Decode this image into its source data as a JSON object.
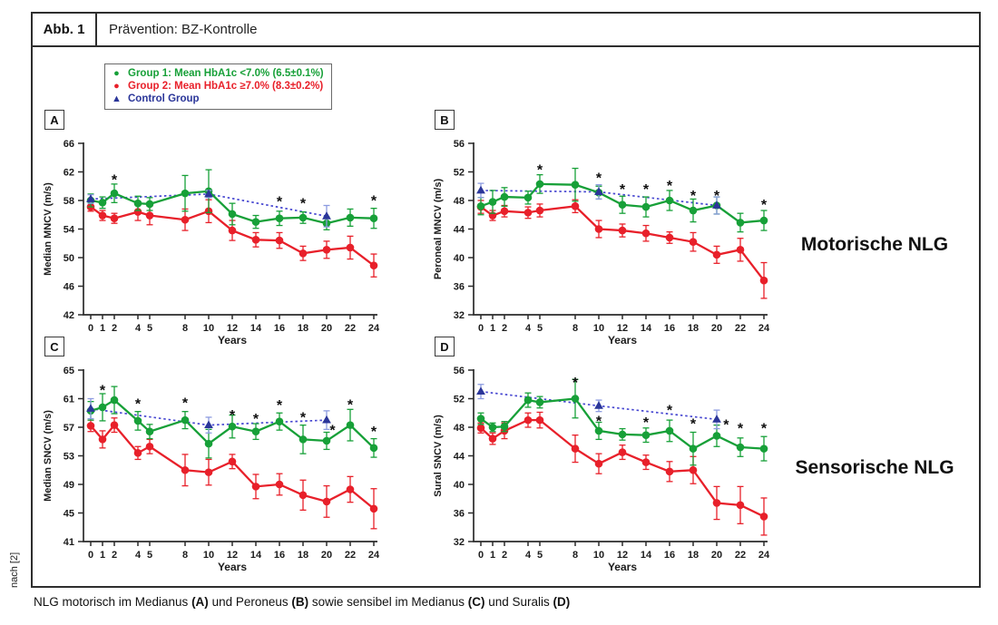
{
  "figure": {
    "label": "Abb. 1",
    "title": "Prävention: BZ-Kontrolle",
    "source_note": "nach [2]",
    "group_labels": {
      "motor": "Motorische NLG",
      "sensory": "Sensorische NLG"
    },
    "caption_segments": [
      {
        "text": "NLG motorisch im Medianus ",
        "bold": false
      },
      {
        "text": "(A)",
        "bold": true
      },
      {
        "text": " und Peroneus ",
        "bold": false
      },
      {
        "text": "(B)",
        "bold": true
      },
      {
        "text": " sowie sensibel im Medianus ",
        "bold": false
      },
      {
        "text": "(C)",
        "bold": true
      },
      {
        "text": " und Suralis ",
        "bold": false
      },
      {
        "text": "(D)",
        "bold": true
      }
    ]
  },
  "legend": {
    "items": [
      {
        "label": "Group 1: Mean HbA1c <7.0% (6.5±0.1%)",
        "color": "#17A038",
        "marker": "circle"
      },
      {
        "label": "Group 2: Mean HbA1c ≥7.0% (8.3±0.2%)",
        "color": "#E8202A",
        "marker": "circle"
      },
      {
        "label": "Control Group",
        "color": "#2B3699",
        "marker": "triangle"
      }
    ]
  },
  "colors": {
    "group1": "#17A038",
    "group2": "#E8202A",
    "control_marker": "#2B3699",
    "control_line": "#4747D1",
    "control_error": "#8C9BE0",
    "axis": "#2b2b2b"
  },
  "chart_data": [
    {
      "panel": "A",
      "type": "line",
      "xlabel": "Years",
      "ylabel": "Median MNCV (m/s)",
      "ylim": [
        42,
        66
      ],
      "ytick_step": 4,
      "x": [
        0,
        1,
        2,
        4,
        5,
        8,
        10,
        12,
        14,
        16,
        18,
        20,
        22,
        24
      ],
      "xticks": [
        0,
        1,
        2,
        4,
        5,
        8,
        10,
        12,
        14,
        16,
        18,
        20,
        22,
        24
      ],
      "series": [
        {
          "name": "Group 1",
          "color": "#17A038",
          "marker": "circle",
          "values": [
            58.0,
            57.7,
            59.0,
            57.6,
            57.5,
            59.0,
            59.3,
            56.1,
            55.0,
            55.5,
            55.6,
            54.8,
            55.6,
            55.5
          ],
          "errors": [
            0.9,
            0.8,
            1.3,
            1.0,
            0.9,
            2.5,
            3.0,
            1.5,
            0.9,
            1.0,
            0.8,
            0.9,
            1.2,
            1.4
          ]
        },
        {
          "name": "Group 2",
          "color": "#E8202A",
          "marker": "circle",
          "values": [
            57.1,
            55.9,
            55.5,
            56.4,
            55.9,
            55.3,
            56.5,
            53.8,
            52.5,
            52.4,
            50.6,
            51.1,
            51.4,
            48.9
          ],
          "errors": [
            0.6,
            0.7,
            0.7,
            1.2,
            1.3,
            1.5,
            1.6,
            1.4,
            1.0,
            1.1,
            1.0,
            1.2,
            1.6,
            1.6
          ]
        },
        {
          "name": "Control Group",
          "color": "#2B3699",
          "marker": "triangle",
          "line": "dotted",
          "line_color": "#4747D1",
          "x": [
            0,
            10,
            20
          ],
          "values": [
            58.2,
            58.9,
            55.8
          ],
          "errors": [
            0.6,
            0.5,
            1.5
          ]
        }
      ],
      "asterisks": [
        {
          "x": 2,
          "y": 60.9
        },
        {
          "x": 16,
          "y": 57.9
        },
        {
          "x": 18,
          "y": 57.6
        },
        {
          "x": 24,
          "y": 58.0
        }
      ]
    },
    {
      "panel": "B",
      "type": "line",
      "xlabel": "Years",
      "ylabel": "Peroneal MNCV (m/s)",
      "ylim": [
        32,
        56
      ],
      "ytick_step": 4,
      "x": [
        0,
        1,
        2,
        4,
        5,
        8,
        10,
        12,
        14,
        16,
        18,
        20,
        22,
        24
      ],
      "xticks": [
        0,
        1,
        2,
        4,
        5,
        8,
        10,
        12,
        14,
        16,
        18,
        20,
        22,
        24
      ],
      "series": [
        {
          "name": "Group 1",
          "color": "#17A038",
          "marker": "circle",
          "values": [
            47.2,
            47.8,
            48.5,
            48.4,
            50.3,
            50.2,
            49.1,
            47.4,
            47.1,
            48.0,
            46.6,
            47.3,
            44.9,
            45.2
          ],
          "errors": [
            1.2,
            1.6,
            1.3,
            0.9,
            1.3,
            2.3,
            0.9,
            1.2,
            1.4,
            1.4,
            1.6,
            1.2,
            1.3,
            1.4
          ]
        },
        {
          "name": "Group 2",
          "color": "#E8202A",
          "marker": "circle",
          "values": [
            47.1,
            45.9,
            46.5,
            46.3,
            46.6,
            47.2,
            44.0,
            43.8,
            43.4,
            42.8,
            42.2,
            40.4,
            41.1,
            36.8
          ],
          "errors": [
            0.9,
            0.7,
            0.8,
            0.8,
            0.9,
            0.9,
            1.2,
            0.9,
            1.1,
            0.8,
            1.3,
            1.2,
            1.6,
            2.5
          ]
        },
        {
          "name": "Control Group",
          "color": "#2B3699",
          "marker": "triangle",
          "line": "dotted",
          "line_color": "#4747D1",
          "x": [
            0,
            10,
            20
          ],
          "values": [
            49.4,
            49.2,
            47.3
          ],
          "errors": [
            1.0,
            1.0,
            1.2
          ]
        }
      ],
      "asterisks": [
        {
          "x": 5,
          "y": 52.3
        },
        {
          "x": 10,
          "y": 51.2
        },
        {
          "x": 12,
          "y": 49.6
        },
        {
          "x": 14,
          "y": 49.6
        },
        {
          "x": 16,
          "y": 50.1
        },
        {
          "x": 18,
          "y": 48.7
        },
        {
          "x": 20,
          "y": 48.7
        },
        {
          "x": 24,
          "y": 47.4
        }
      ]
    },
    {
      "panel": "C",
      "type": "line",
      "xlabel": "Years",
      "ylabel": "Median SNCV (m/s)",
      "ylim": [
        41,
        65
      ],
      "ytick_step": 4,
      "x": [
        0,
        1,
        2,
        4,
        5,
        8,
        10,
        12,
        14,
        16,
        18,
        20,
        22,
        24
      ],
      "xticks": [
        0,
        1,
        2,
        4,
        5,
        8,
        10,
        12,
        14,
        16,
        18,
        20,
        22,
        24
      ],
      "series": [
        {
          "name": "Group 1",
          "color": "#17A038",
          "marker": "circle",
          "values": [
            59.3,
            59.8,
            60.8,
            57.9,
            56.4,
            58.0,
            54.7,
            57.1,
            56.4,
            57.8,
            55.3,
            55.1,
            57.3,
            54.1
          ],
          "errors": [
            1.3,
            1.9,
            1.9,
            1.3,
            1.0,
            1.2,
            2.0,
            1.6,
            1.1,
            1.2,
            2.0,
            1.2,
            2.2,
            1.3
          ]
        },
        {
          "name": "Group 2",
          "color": "#E8202A",
          "marker": "circle",
          "values": [
            57.2,
            55.3,
            57.3,
            53.4,
            54.3,
            51.0,
            50.7,
            52.2,
            48.7,
            49.0,
            47.5,
            46.6,
            48.3,
            45.6
          ],
          "errors": [
            0.8,
            1.2,
            1.0,
            0.9,
            1.0,
            2.2,
            1.8,
            1.0,
            1.7,
            1.5,
            2.1,
            2.2,
            1.8,
            2.8
          ]
        },
        {
          "name": "Control Group",
          "color": "#2B3699",
          "marker": "triangle",
          "line": "dotted",
          "line_color": "#4747D1",
          "x": [
            0,
            10,
            20
          ],
          "values": [
            59.6,
            57.3,
            58.0
          ],
          "errors": [
            1.4,
            1.1,
            1.3
          ]
        }
      ],
      "asterisks": [
        {
          "x": 1,
          "y": 62.2
        },
        {
          "x": 4,
          "y": 60.3
        },
        {
          "x": 8,
          "y": 60.4
        },
        {
          "x": 12,
          "y": 58.7
        },
        {
          "x": 14,
          "y": 58.2
        },
        {
          "x": 16,
          "y": 60.1
        },
        {
          "x": 18,
          "y": 58.4
        },
        {
          "x": 20.5,
          "y": 56.6
        },
        {
          "x": 22,
          "y": 60.2
        },
        {
          "x": 24,
          "y": 56.4
        }
      ]
    },
    {
      "panel": "D",
      "type": "line",
      "xlabel": "Years",
      "ylabel": "Sural SNCV (m/s)",
      "ylim": [
        32,
        56
      ],
      "ytick_step": 4,
      "x": [
        0,
        1,
        2,
        4,
        5,
        8,
        10,
        12,
        14,
        16,
        18,
        20,
        22,
        24
      ],
      "xticks": [
        0,
        1,
        2,
        4,
        5,
        8,
        10,
        12,
        14,
        16,
        18,
        20,
        22,
        24
      ],
      "series": [
        {
          "name": "Group 1",
          "color": "#17A038",
          "marker": "circle",
          "values": [
            49.2,
            48.0,
            48.1,
            51.8,
            51.5,
            52.0,
            47.5,
            47.0,
            46.9,
            47.5,
            45.0,
            46.8,
            45.2,
            45.0
          ],
          "errors": [
            0.8,
            0.6,
            0.7,
            1.0,
            0.8,
            2.7,
            1.2,
            0.8,
            1.0,
            1.5,
            2.3,
            1.5,
            1.3,
            1.7
          ]
        },
        {
          "name": "Group 2",
          "color": "#E8202A",
          "marker": "circle",
          "values": [
            47.9,
            46.4,
            47.5,
            49.0,
            49.0,
            45.0,
            42.9,
            44.5,
            43.1,
            41.8,
            42.0,
            37.4,
            37.1,
            35.5
          ],
          "errors": [
            0.7,
            0.8,
            1.1,
            1.0,
            1.1,
            1.9,
            1.4,
            1.0,
            1.0,
            1.4,
            1.9,
            2.3,
            2.6,
            2.6
          ]
        },
        {
          "name": "Control Group",
          "color": "#2B3699",
          "marker": "triangle",
          "line": "dotted",
          "line_color": "#4747D1",
          "x": [
            0,
            10,
            20
          ],
          "values": [
            53.0,
            51.0,
            49.1
          ],
          "errors": [
            1.0,
            0.8,
            1.3
          ]
        }
      ],
      "asterisks": [
        {
          "x": 8,
          "y": 54.3
        },
        {
          "x": 10,
          "y": 48.9
        },
        {
          "x": 14,
          "y": 48.7
        },
        {
          "x": 16,
          "y": 50.4
        },
        {
          "x": 18,
          "y": 48.5
        },
        {
          "x": 20.8,
          "y": 48.4
        },
        {
          "x": 22,
          "y": 47.9
        },
        {
          "x": 24,
          "y": 47.9
        }
      ]
    }
  ]
}
